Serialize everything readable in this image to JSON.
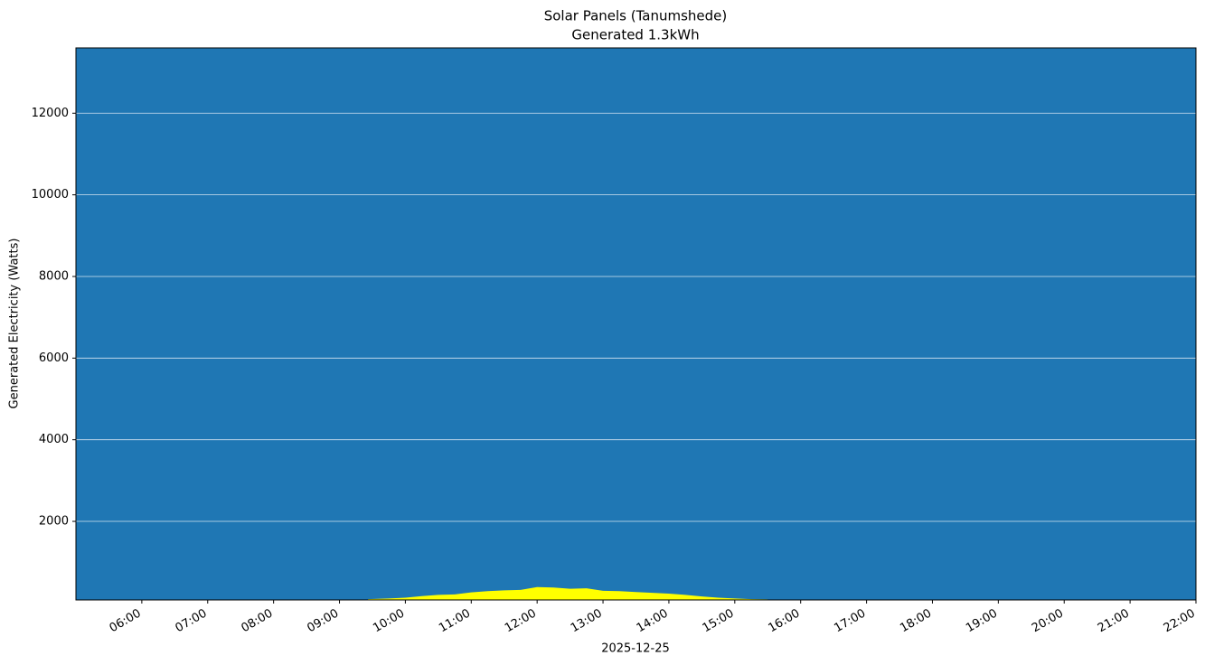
{
  "chart_data": {
    "type": "area",
    "title": "Solar Panels (Tanumshede)",
    "subtitle": "Generated 1.3kWh",
    "xlabel": "2025-12-25",
    "ylabel": "Generated Electricity (Watts)",
    "x": [
      "09:26",
      "09:45",
      "10:00",
      "10:15",
      "10:30",
      "10:45",
      "11:00",
      "11:15",
      "11:30",
      "11:45",
      "12:00",
      "12:15",
      "12:30",
      "12:45",
      "13:00",
      "13:15",
      "13:30",
      "13:45",
      "14:00",
      "14:15",
      "14:30",
      "14:45",
      "15:00",
      "15:15",
      "15:30"
    ],
    "values": [
      95,
      110,
      130,
      170,
      200,
      210,
      260,
      290,
      310,
      320,
      390,
      380,
      350,
      360,
      300,
      290,
      270,
      250,
      230,
      200,
      160,
      130,
      110,
      95,
      90
    ],
    "color": "#ffff00",
    "background": "#1f77b4",
    "xlim": [
      "05:00",
      "22:00"
    ],
    "xticks": [
      "06:00",
      "07:00",
      "08:00",
      "09:00",
      "10:00",
      "11:00",
      "12:00",
      "13:00",
      "14:00",
      "15:00",
      "16:00",
      "17:00",
      "18:00",
      "19:00",
      "20:00",
      "21:00",
      "22:00"
    ],
    "ylim": [
      75,
      13600
    ],
    "yticks": [
      2000,
      4000,
      6000,
      8000,
      10000,
      12000
    ],
    "grid": true
  }
}
